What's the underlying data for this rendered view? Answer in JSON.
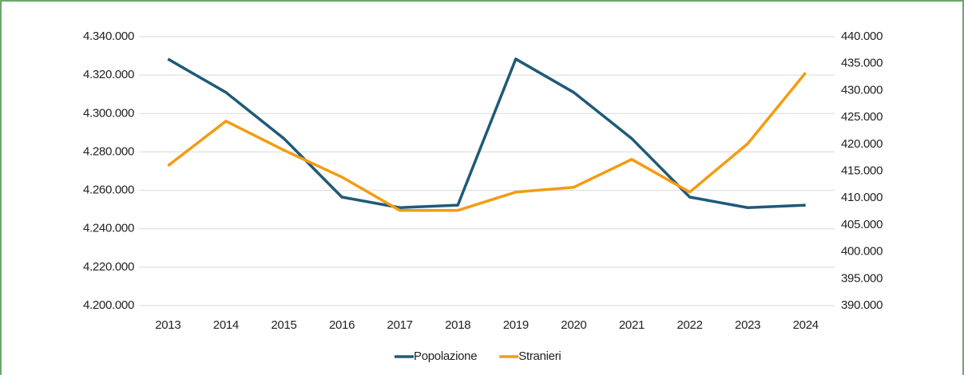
{
  "chart_data": {
    "type": "line",
    "categories": [
      "2013",
      "2014",
      "2015",
      "2016",
      "2017",
      "2018",
      "2019",
      "2020",
      "2021",
      "2022",
      "2023",
      "2024"
    ],
    "series": [
      {
        "name": "Popolazione",
        "color": "#1f5a78",
        "values": [
          4328400,
          4311000,
          4287000,
          4256500,
          4251000,
          4252300,
          4328400,
          4311000,
          4287000,
          4256500,
          4251000,
          4252300
        ]
      },
      {
        "name": "Stranieri",
        "color": "#f39c12",
        "axis": "y2",
        "values": [
          416000,
          424300,
          418900,
          413900,
          407700,
          407700,
          411100,
          412000,
          417200,
          411100,
          420100,
          433300
        ]
      }
    ],
    "ylim": [
      4200000,
      4340000
    ],
    "yticks": [
      {
        "value": 4200000,
        "label": "4.200.000"
      },
      {
        "value": 4220000,
        "label": "4.220.000"
      },
      {
        "value": 4240000,
        "label": "4.240.000"
      },
      {
        "value": 4260000,
        "label": "4.260.000"
      },
      {
        "value": 4280000,
        "label": "4.280.000"
      },
      {
        "value": 4300000,
        "label": "4.300.000"
      },
      {
        "value": 4320000,
        "label": "4.320.000"
      },
      {
        "value": 4340000,
        "label": "4.340.000"
      }
    ],
    "y2lim": [
      390000,
      440000
    ],
    "y2ticks": [
      {
        "value": 390000,
        "label": "390.000"
      },
      {
        "value": 395000,
        "label": "395.000"
      },
      {
        "value": 400000,
        "label": "400.000"
      },
      {
        "value": 405000,
        "label": "405.000"
      },
      {
        "value": 410000,
        "label": "410.000"
      },
      {
        "value": 415000,
        "label": "415.000"
      },
      {
        "value": 420000,
        "label": "420.000"
      },
      {
        "value": 425000,
        "label": "425.000"
      },
      {
        "value": 430000,
        "label": "430.000"
      },
      {
        "value": 435000,
        "label": "435.000"
      },
      {
        "value": 440000,
        "label": "440.000"
      }
    ],
    "grid": true,
    "legend": "bottom"
  }
}
